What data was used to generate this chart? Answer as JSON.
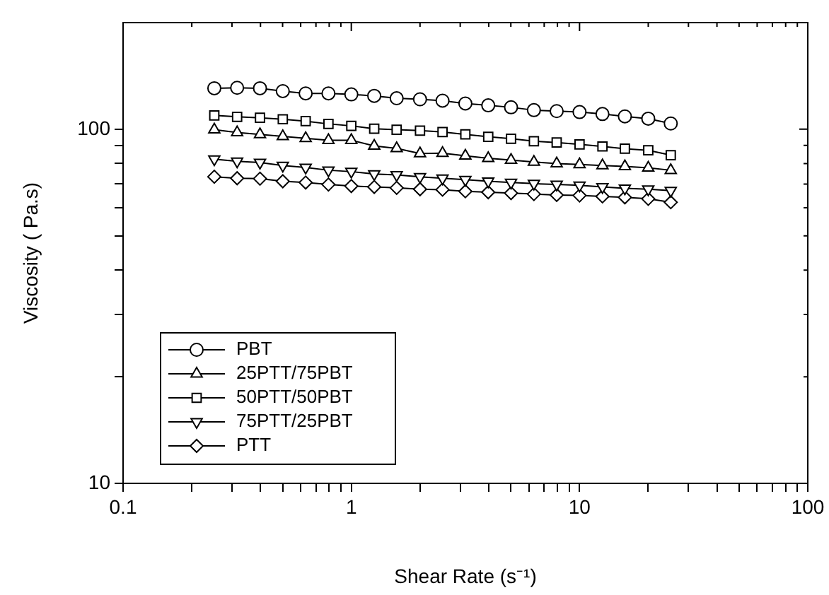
{
  "chart_data": {
    "type": "line",
    "xlabel": "Shear Rate (s⁻¹)",
    "ylabel": "Viscosity ( Pa.s)",
    "log": "xy",
    "legend": "bottom left",
    "grid": false,
    "line_style": "solid",
    "x": [
      0.251,
      0.316,
      0.398,
      0.501,
      0.631,
      0.794,
      1,
      1.26,
      1.58,
      2,
      2.51,
      3.16,
      3.98,
      5.01,
      6.31,
      7.94,
      10,
      12.6,
      15.8,
      20,
      25.1
    ],
    "xlim": [
      0.1,
      100
    ],
    "xticks": [
      0.1,
      {
        "value": 0.2,
        "label": null
      },
      {
        "value": 0.3,
        "label": null
      },
      {
        "value": 0.4,
        "label": null
      },
      {
        "value": 0.5,
        "label": null
      },
      {
        "value": 0.6,
        "label": null
      },
      {
        "value": 0.7,
        "label": null
      },
      {
        "value": 0.8,
        "label": null
      },
      {
        "value": 0.9,
        "label": null
      },
      1,
      {
        "value": 2,
        "label": null
      },
      {
        "value": 3,
        "label": null
      },
      {
        "value": 4,
        "label": null
      },
      {
        "value": 5,
        "label": null
      },
      {
        "value": 6,
        "label": null
      },
      {
        "value": 7,
        "label": null
      },
      {
        "value": 8,
        "label": null
      },
      {
        "value": 9,
        "label": null
      },
      10,
      {
        "value": 20,
        "label": null
      },
      {
        "value": 30,
        "label": null
      },
      {
        "value": 40,
        "label": null
      },
      {
        "value": 50,
        "label": null
      },
      {
        "value": 60,
        "label": null
      },
      {
        "value": 70,
        "label": null
      },
      {
        "value": 80,
        "label": null
      },
      {
        "value": 90,
        "label": null
      },
      100
    ],
    "ylim": [
      10,
      200
    ],
    "yticks": [
      10,
      {
        "value": 20,
        "label": null
      },
      {
        "value": 30,
        "label": null
      },
      {
        "value": 40,
        "label": null
      },
      {
        "value": 50,
        "label": null
      },
      {
        "value": 60,
        "label": null
      },
      {
        "value": 70,
        "label": null
      },
      {
        "value": 80,
        "label": null
      },
      {
        "value": 90,
        "label": null
      },
      100
    ],
    "series": [
      {
        "name": "PBT",
        "color": "#000000",
        "marker": "circle",
        "values": [
          130.5,
          130.9,
          130.5,
          128.1,
          126.2,
          126.2,
          125.4,
          124.2,
          122.3,
          121.5,
          120.4,
          118.2,
          116.8,
          115.3,
          113.2,
          112.5,
          111.8,
          110.4,
          108.7,
          107.1,
          103.8
        ]
      },
      {
        "name": "25PTT/75PBT",
        "color": "#000000",
        "marker": "triangle",
        "values": [
          99.7,
          97.9,
          96.7,
          95.5,
          94.3,
          93.1,
          93.1,
          89.7,
          88.3,
          85.4,
          85.6,
          84.1,
          82.8,
          81.8,
          80.8,
          80.0,
          79.5,
          79.0,
          78.5,
          77.8,
          76.6
        ]
      },
      {
        "name": "50PTT/50PBT",
        "color": "#000000",
        "marker": "square",
        "values": [
          109.4,
          108.4,
          107.7,
          106.7,
          105.4,
          103.5,
          102.2,
          100.3,
          99.7,
          99.1,
          98.2,
          96.7,
          95.2,
          94.0,
          92.5,
          91.7,
          90.6,
          89.4,
          88.1,
          87.2,
          84.5
        ]
      },
      {
        "name": "75PTT/25PBT",
        "color": "#000000",
        "marker": "triangle-down",
        "values": [
          82.3,
          81.2,
          80.5,
          79.0,
          78.0,
          76.6,
          75.9,
          74.7,
          74.3,
          73.4,
          72.7,
          72.0,
          71.3,
          70.7,
          70.2,
          69.8,
          69.4,
          68.7,
          68.1,
          67.7,
          67.1
        ]
      },
      {
        "name": "PTT",
        "color": "#000000",
        "marker": "diamond",
        "values": [
          73.4,
          72.7,
          72.5,
          71.3,
          70.7,
          69.8,
          69.1,
          68.7,
          68.3,
          67.7,
          67.5,
          66.8,
          66.4,
          66.0,
          65.6,
          65.2,
          65.0,
          64.6,
          64.2,
          63.6,
          62.2
        ]
      }
    ]
  }
}
